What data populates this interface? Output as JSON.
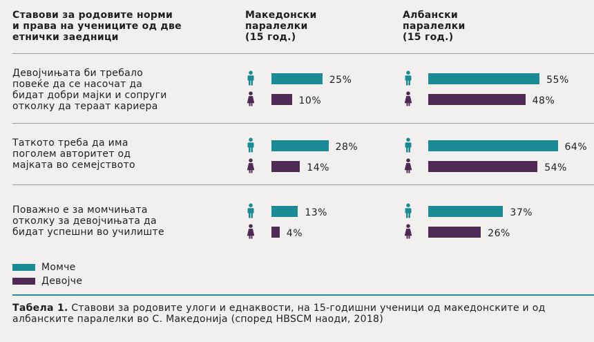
{
  "headers": {
    "statement": "Ставови за родовите норми\nи права на учениците од две\nетнички заедници",
    "macedonian": "Македонски\nпаралелки\n(15 год.)",
    "albanian": "Албански\nпаралелки\n(15 год.)"
  },
  "colors": {
    "boy": "#1a8a94",
    "girl": "#4f2a55"
  },
  "chart_data": {
    "type": "bar",
    "orientation": "horizontal",
    "unit": "%",
    "categories": [
      "Девојчињата би требало\nповеќе да се насочат да\nбидат добри мајки и сопруги\nотколку да тераат кариера",
      "Таткото треба да има\nпоголем авторитет од\nмајката во семејството",
      "Поважно е за момчињата\nотколку за девојчињата да\nбидат успешни во училиште"
    ],
    "groups": [
      "Македонски паралелки (15 год.)",
      "Албански паралелки (15 год.)"
    ],
    "series": [
      {
        "name": "Момче",
        "macedonian": [
          25,
          28,
          13
        ],
        "albanian": [
          55,
          64,
          37
        ]
      },
      {
        "name": "Девојче",
        "macedonian": [
          10,
          14,
          4
        ],
        "albanian": [
          48,
          54,
          26
        ]
      }
    ],
    "labels": {
      "macedonian": {
        "boy": [
          "25%",
          "28%",
          "13%"
        ],
        "girl": [
          "10%",
          "14%",
          "4%"
        ]
      },
      "albanian": {
        "boy": [
          "55%",
          "64%",
          "37%"
        ],
        "girl": [
          "48%",
          "54%",
          "26%"
        ]
      }
    }
  },
  "legend": {
    "boy": "Момче",
    "girl": "Девојче"
  },
  "caption": {
    "bold": "Табела 1.",
    "text": " Ставови за родовите улоги и еднаквости, на 15-годишни ученици од македонските и од албанските паралелки во С. Македонија (според HBSCM наоди, 2018)"
  }
}
